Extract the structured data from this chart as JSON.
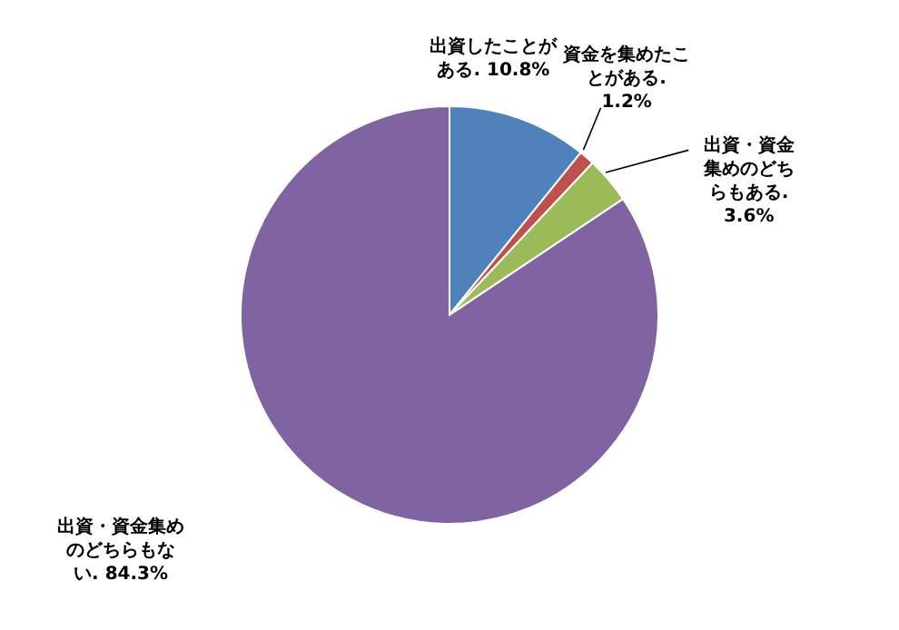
{
  "chart_data": {
    "type": "pie",
    "categories": [
      "出資したことがある.",
      "資金を集めたことがある.",
      "出資・資金集めのどちらもある.",
      "出資・資金集めのどちらもない."
    ],
    "values": [
      10.8,
      1.2,
      3.6,
      84.3
    ],
    "value_labels": [
      "10.8%",
      "1.2%",
      "3.6%",
      "84.3%"
    ],
    "colors": [
      "#4f81bd",
      "#c0504d",
      "#9bbb59",
      "#8064a2"
    ]
  }
}
